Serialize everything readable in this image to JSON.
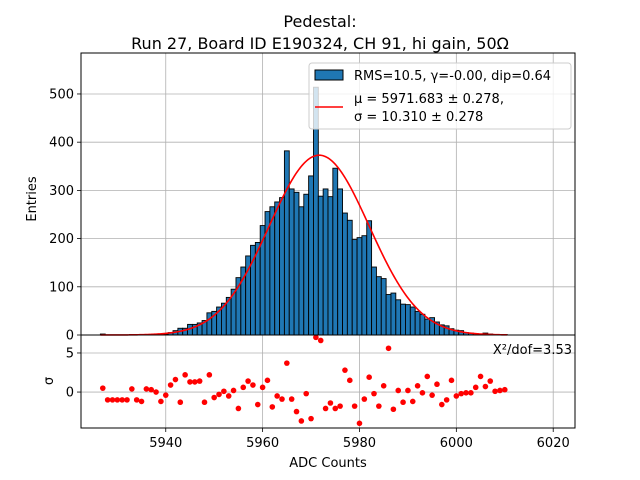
{
  "chart_data": [
    {
      "type": "bar",
      "panel": "main",
      "title_line1": "Pedestal:",
      "title_line2": "Run 27, Board ID E190324, CH 91, hi gain, 50Ω",
      "xlabel": "",
      "ylabel": "Entries",
      "xlim": [
        5922.5,
        6024.5
      ],
      "ylim": [
        0,
        585
      ],
      "yticks": [
        0,
        100,
        200,
        300,
        400,
        500
      ],
      "xticks": [
        5940,
        5960,
        5980,
        6000,
        6020
      ],
      "grid": true,
      "bar_color": "#1f77b4",
      "bar_edge_color": "#000000",
      "bin_width": 1,
      "x": [
        5927,
        5928,
        5929,
        5930,
        5931,
        5932,
        5933,
        5934,
        5935,
        5936,
        5937,
        5938,
        5939,
        5940,
        5941,
        5942,
        5943,
        5944,
        5945,
        5946,
        5947,
        5948,
        5949,
        5950,
        5951,
        5952,
        5953,
        5954,
        5955,
        5956,
        5957,
        5958,
        5959,
        5960,
        5961,
        5962,
        5963,
        5964,
        5965,
        5966,
        5967,
        5968,
        5969,
        5970,
        5971,
        5972,
        5973,
        5974,
        5975,
        5976,
        5977,
        5978,
        5979,
        5980,
        5981,
        5982,
        5983,
        5984,
        5985,
        5986,
        5987,
        5988,
        5989,
        5990,
        5991,
        5992,
        5993,
        5994,
        5995,
        5996,
        5997,
        5998,
        5999,
        6000,
        6001,
        6002,
        6003,
        6004,
        6005,
        6006,
        6007,
        6008,
        6009,
        6010
      ],
      "values": [
        2,
        0,
        0,
        0,
        0,
        0,
        1,
        0,
        0,
        1,
        1,
        1,
        1,
        2,
        5,
        9,
        14,
        14,
        22,
        22,
        25,
        30,
        46,
        49,
        58,
        66,
        78,
        95,
        119,
        141,
        164,
        186,
        192,
        227,
        256,
        266,
        276,
        285,
        382,
        303,
        296,
        266,
        292,
        330,
        514,
        288,
        303,
        287,
        346,
        303,
        253,
        238,
        198,
        202,
        206,
        237,
        141,
        121,
        117,
        84,
        87,
        73,
        64,
        63,
        58,
        49,
        43,
        33,
        36,
        27,
        21,
        19,
        13,
        10,
        9,
        5,
        4,
        3,
        2,
        4,
        2,
        1,
        1,
        1
      ],
      "legend": {
        "position": "upper-right",
        "entries": [
          {
            "kind": "patch",
            "label": "RMS=10.5, γ=-0.00, dip=0.64"
          },
          {
            "kind": "line",
            "label_line1": "μ = 5971.683 ± 0.278,",
            "label_line2": "σ = 10.310 ± 0.278"
          }
        ]
      },
      "fit": {
        "type": "gaussian",
        "color": "#ff0000",
        "mu": 5971.683,
        "mu_err": 0.278,
        "sigma": 10.31,
        "sigma_err": 0.278,
        "amplitude": 373,
        "x_range": [
          5926.5,
          6010.5
        ]
      }
    },
    {
      "type": "scatter",
      "panel": "residuals",
      "xlabel": "ADC Counts",
      "ylabel": "σ",
      "xlim": [
        5922.5,
        6024.5
      ],
      "ylim": [
        -4.6,
        7.3
      ],
      "yticks": [
        0,
        5
      ],
      "xticks": [
        5940,
        5960,
        5980,
        6000,
        6020
      ],
      "tick_labels_x": [
        "5940",
        "5960",
        "5980",
        "6000",
        "6020"
      ],
      "grid": true,
      "marker_color": "#ff0000",
      "annotation": "X²/dof=3.53",
      "x": [
        5927,
        5928,
        5929,
        5930,
        5931,
        5932,
        5933,
        5934,
        5935,
        5936,
        5937,
        5938,
        5939,
        5940,
        5941,
        5942,
        5943,
        5944,
        5945,
        5946,
        5947,
        5948,
        5949,
        5950,
        5951,
        5952,
        5953,
        5954,
        5955,
        5956,
        5957,
        5958,
        5959,
        5960,
        5961,
        5962,
        5963,
        5964,
        5965,
        5966,
        5967,
        5968,
        5969,
        5970,
        5971,
        5972,
        5973,
        5974,
        5975,
        5976,
        5977,
        5978,
        5979,
        5980,
        5981,
        5982,
        5983,
        5984,
        5985,
        5986,
        5987,
        5988,
        5989,
        5990,
        5991,
        5992,
        5993,
        5994,
        5995,
        5996,
        5997,
        5998,
        5999,
        6000,
        6001,
        6002,
        6003,
        6004,
        6005,
        6006,
        6007,
        6008,
        6009,
        6010
      ],
      "values": [
        0.5,
        -1.0,
        -1.0,
        -1.0,
        -1.0,
        -1.0,
        0.4,
        -1.0,
        -1.2,
        0.4,
        0.3,
        0.0,
        -1.2,
        -0.4,
        0.9,
        1.6,
        -1.3,
        2.2,
        1.3,
        1.3,
        1.4,
        -1.3,
        2.2,
        -0.7,
        -0.3,
        0.1,
        -0.5,
        0.2,
        -2.1,
        0.6,
        1.4,
        0.9,
        -1.6,
        0.6,
        1.5,
        -1.9,
        -0.5,
        -0.9,
        3.7,
        -0.9,
        -2.5,
        -3.7,
        -0.2,
        -3.4,
        7.0,
        6.6,
        -2.1,
        -1.4,
        -2.1,
        -1.8,
        2.8,
        1.5,
        -1.8,
        -4.0,
        -0.9,
        1.9,
        -0.2,
        -1.8,
        0.8,
        5.6,
        -2.2,
        0.2,
        -1.3,
        0.2,
        -1.2,
        0.8,
        -0.1,
        2.0,
        -0.4,
        1.0,
        -1.6,
        -1.0,
        1.5,
        -0.5,
        -0.2,
        -0.1,
        -0.1,
        0.6,
        2.0,
        0.7,
        1.4,
        0.1,
        0.2,
        0.3
      ]
    }
  ]
}
